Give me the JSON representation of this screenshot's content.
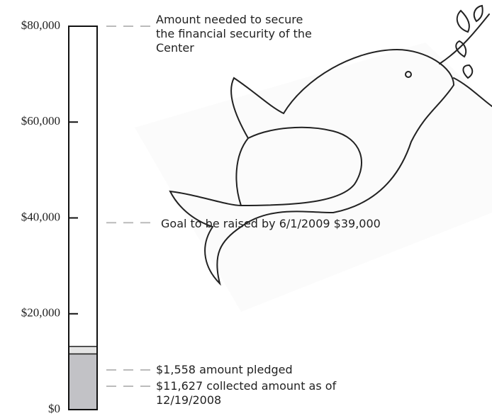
{
  "chart_data": {
    "type": "bar",
    "ylim": [
      0,
      80000
    ],
    "yticks": [
      {
        "value": 0,
        "label": "$0"
      },
      {
        "value": 20000,
        "label": "$20,000"
      },
      {
        "value": 40000,
        "label": "$40,000"
      },
      {
        "value": 60000,
        "label": "$60,000"
      },
      {
        "value": 80000,
        "label": "$80,000"
      }
    ],
    "target": {
      "value": 80000,
      "label": "Amount needed to secure the financial security of the Center"
    },
    "goal": {
      "value": 39000,
      "label": "Goal to be raised by 6/1/2009 $39,000"
    },
    "series": [
      {
        "color": "#c2c2c6",
        "values": [
          11627
        ],
        "value_labels": [
          "$11,627 collected amount as of 12/19/2008"
        ]
      },
      {
        "color": "#e4e4e4",
        "values": [
          1558
        ],
        "value_labels": [
          "$1,558 amount pledged"
        ]
      }
    ]
  }
}
